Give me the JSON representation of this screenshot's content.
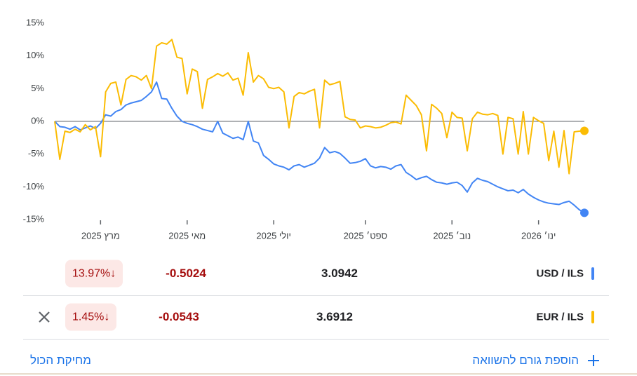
{
  "chart_data": {
    "type": "line",
    "categories": [
      null,
      null,
      null,
      null,
      null,
      null,
      null,
      null,
      null,
      "מרץ 2025",
      null,
      null,
      null,
      null,
      null,
      null,
      null,
      null,
      null,
      null,
      null,
      null,
      null,
      null,
      null,
      null,
      "מאי 2025",
      null,
      null,
      null,
      null,
      null,
      null,
      null,
      null,
      null,
      null,
      null,
      null,
      null,
      null,
      null,
      null,
      "יולי 2025",
      null,
      null,
      null,
      null,
      null,
      null,
      null,
      null,
      null,
      null,
      null,
      null,
      null,
      null,
      null,
      null,
      null,
      "ספט׳ 2025",
      null,
      null,
      null,
      null,
      null,
      null,
      null,
      null,
      null,
      null,
      null,
      null,
      null,
      null,
      null,
      null,
      "נוב׳ 2025",
      null,
      null,
      null,
      null,
      null,
      null,
      null,
      null,
      null,
      null,
      null,
      null,
      null,
      null,
      null,
      null,
      "ינו׳ 2026",
      null,
      null,
      null,
      null,
      null,
      null,
      null,
      null,
      null
    ],
    "series": [
      {
        "name": "USD / ILS",
        "color": "#4285f4",
        "values": [
          0,
          -0.8,
          -0.9,
          -1.2,
          -0.8,
          -1.3,
          -1,
          -0.7,
          -1.1,
          -0.3,
          1,
          0.8,
          1.5,
          1.8,
          2.5,
          2.8,
          3,
          3.2,
          3.8,
          4.5,
          6,
          3.5,
          3.4,
          2,
          0.8,
          0,
          -0.3,
          -0.5,
          -0.8,
          -1.2,
          -1.4,
          -1.6,
          0,
          -1.8,
          -2.2,
          -2.6,
          -2.4,
          -2.8,
          0,
          -3,
          -3.3,
          -5.2,
          -5.8,
          -6.5,
          -6.8,
          -7,
          -7.4,
          -6.8,
          -6.6,
          -7,
          -6.7,
          -6.4,
          -5.6,
          -4,
          -4.8,
          -4.6,
          -4.9,
          -5.6,
          -6.4,
          -6.3,
          -6.1,
          -5.7,
          -6.8,
          -7.1,
          -6.9,
          -7,
          -7.3,
          -6.8,
          -6.6,
          -7.8,
          -8.3,
          -8.9,
          -8.6,
          -8.4,
          -8.9,
          -9.3,
          -9.4,
          -9.6,
          -9.4,
          -9.3,
          -9.8,
          -10.8,
          -9.4,
          -8.7,
          -9,
          -9.2,
          -9.6,
          -10,
          -10.3,
          -10.6,
          -10.5,
          -10.9,
          -10.4,
          -11.1,
          -11.6,
          -12,
          -12.3,
          -12.5,
          -12.6,
          -12.7,
          -12.4,
          -12.2,
          -12.8,
          -13.5,
          -13.97
        ]
      },
      {
        "name": "EUR / ILS",
        "color": "#fbbc04",
        "values": [
          0,
          -5.8,
          -1.5,
          -1.7,
          -1.2,
          -1.6,
          -0.5,
          -1.3,
          -0.8,
          -5.4,
          4.5,
          5.8,
          6,
          2.5,
          6.4,
          7,
          6.8,
          6.3,
          7,
          5,
          11.5,
          12,
          11.8,
          12.5,
          9.8,
          9.6,
          4.2,
          8,
          7.6,
          2,
          6.4,
          6.8,
          7.3,
          6.9,
          7.4,
          6.3,
          6.6,
          4,
          10.5,
          6,
          7,
          6.5,
          5.2,
          5,
          5.2,
          4.5,
          -1,
          3.8,
          4.4,
          4.2,
          4.6,
          4.9,
          -1,
          6.3,
          5.6,
          5.8,
          6.1,
          0.7,
          0.3,
          0.2,
          -1,
          -0.7,
          -0.8,
          -1,
          -0.9,
          -0.6,
          -0.2,
          -0.1,
          -0.4,
          4,
          3.2,
          2.4,
          1,
          -4.5,
          2.6,
          2,
          1.2,
          -2.5,
          1.4,
          0.6,
          0.5,
          -4.5,
          0.4,
          1.4,
          1.1,
          1,
          1.2,
          0.9,
          -5,
          0.6,
          0.4,
          -5,
          1.5,
          -5,
          0.6,
          0.1,
          -0.3,
          -6,
          -1.5,
          -7,
          -1.4,
          -8,
          -1.6,
          -1.5,
          -1.45
        ]
      }
    ],
    "ylim": [
      -15,
      15
    ],
    "yticks": [
      {
        "value": 15,
        "label": "15%"
      },
      {
        "value": 10,
        "label": "10%"
      },
      {
        "value": 5,
        "label": "5%"
      },
      {
        "value": 0,
        "label": "0%"
      },
      {
        "value": -5,
        "label": "-5%"
      },
      {
        "value": -10,
        "label": "-10%"
      },
      {
        "value": -15,
        "label": "-15%"
      }
    ],
    "zero_line": true
  },
  "comparison": [
    {
      "price": "3.0942",
      "change": "-0.5024",
      "change_pct": "13.97%"
    },
    {
      "price": "3.6912",
      "change": "-0.0543",
      "change_pct": "1.45%"
    }
  ],
  "add_comparison": "הוספת גורם להשוואה",
  "clear_all": "מחיקת הכול"
}
